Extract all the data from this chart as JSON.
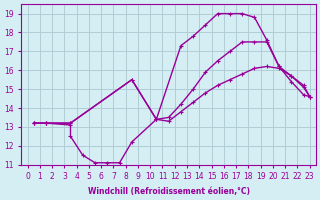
{
  "xlabel": "Windchill (Refroidissement éolien,°C)",
  "bg_color": "#d4eef4",
  "grid_color": "#b0cdd6",
  "line_color": "#990099",
  "xlim": [
    -0.5,
    23.5
  ],
  "ylim": [
    11,
    19.5
  ],
  "xticks": [
    0,
    1,
    2,
    3,
    4,
    5,
    6,
    7,
    8,
    9,
    10,
    11,
    12,
    13,
    14,
    15,
    16,
    17,
    18,
    19,
    20,
    21,
    22,
    23
  ],
  "yticks": [
    11,
    12,
    13,
    14,
    15,
    16,
    17,
    18,
    19
  ],
  "line1_x": [
    0.5,
    1.5,
    3.5,
    3.5,
    4.5,
    5.5,
    6.5,
    7.5,
    8.5,
    10.5,
    12.5,
    13.5,
    14.5,
    15.5,
    16.5,
    17.5,
    18.5,
    19.5,
    20.5,
    21.5,
    22.5,
    23.0
  ],
  "line1_y": [
    13.2,
    13.2,
    13.1,
    12.5,
    11.5,
    11.1,
    11.1,
    11.1,
    12.2,
    13.4,
    17.3,
    17.8,
    18.4,
    19.0,
    19.0,
    19.0,
    18.8,
    17.6,
    16.2,
    15.4,
    14.7,
    14.6
  ],
  "line2_x": [
    0.5,
    1.5,
    3.5,
    8.5,
    10.5,
    11.5,
    12.5,
    13.5,
    14.5,
    15.5,
    16.5,
    17.5,
    18.5,
    19.5,
    20.5,
    21.5,
    22.5,
    23.0
  ],
  "line2_y": [
    13.2,
    13.2,
    13.2,
    15.5,
    13.4,
    13.5,
    14.2,
    15.0,
    15.9,
    16.5,
    17.0,
    17.5,
    17.5,
    17.5,
    16.2,
    15.7,
    15.2,
    14.6
  ],
  "line3_x": [
    0.5,
    1.5,
    3.5,
    8.5,
    10.5,
    11.5,
    12.5,
    13.5,
    14.5,
    15.5,
    16.5,
    17.5,
    18.5,
    19.5,
    20.5,
    21.5,
    22.5,
    23.0
  ],
  "line3_y": [
    13.2,
    13.2,
    13.2,
    15.5,
    13.4,
    13.3,
    13.8,
    14.3,
    14.8,
    15.2,
    15.5,
    15.8,
    16.1,
    16.2,
    16.1,
    15.7,
    15.1,
    14.6
  ]
}
